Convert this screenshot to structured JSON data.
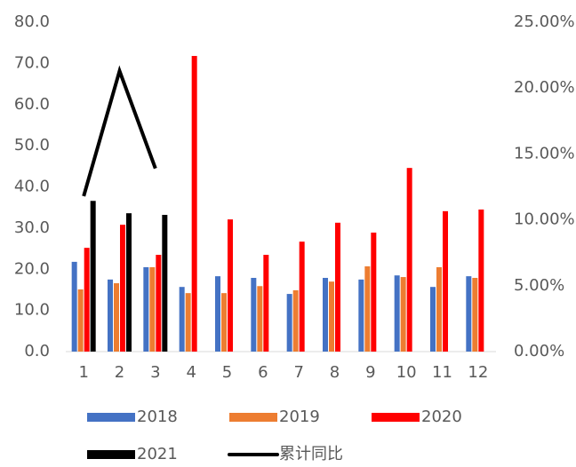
{
  "chart_data": {
    "type": "bar",
    "categories": [
      "1",
      "2",
      "3",
      "4",
      "5",
      "6",
      "7",
      "8",
      "9",
      "10",
      "11",
      "12"
    ],
    "series": [
      {
        "name": "2018",
        "color": "#4472c4",
        "values": [
          21.8,
          17.5,
          20.5,
          15.7,
          18.3,
          17.9,
          14.0,
          17.9,
          17.5,
          18.5,
          15.7,
          18.3
        ]
      },
      {
        "name": "2019",
        "color": "#ed7d31",
        "values": [
          15.1,
          16.6,
          20.5,
          14.2,
          14.2,
          15.9,
          14.9,
          17.0,
          20.7,
          18.1,
          20.5,
          17.9
        ]
      },
      {
        "name": "2020",
        "color": "#ff0000",
        "values": [
          25.2,
          30.8,
          23.5,
          71.8,
          32.1,
          23.5,
          26.7,
          31.3,
          28.9,
          44.6,
          34.1,
          34.5
        ]
      },
      {
        "name": "2021",
        "color": "#000000",
        "values": [
          36.6,
          33.6,
          33.2,
          null,
          null,
          null,
          null,
          null,
          null,
          null,
          null,
          null
        ]
      },
      {
        "name": "累计同比",
        "color": "#000000",
        "type": "line",
        "axis": "y2",
        "values": [
          11.8,
          21.3,
          13.9,
          null,
          null,
          null,
          null,
          null,
          null,
          null,
          null,
          null
        ]
      }
    ],
    "ylim": [
      0,
      80
    ],
    "yticks": [
      {
        "value": 0,
        "label": "0.0"
      },
      {
        "value": 10,
        "label": "10.0"
      },
      {
        "value": 20,
        "label": "20.0"
      },
      {
        "value": 30,
        "label": "30.0"
      },
      {
        "value": 40,
        "label": "40.0"
      },
      {
        "value": 50,
        "label": "50.0"
      },
      {
        "value": 60,
        "label": "60.0"
      },
      {
        "value": 70,
        "label": "70.0"
      },
      {
        "value": 80,
        "label": "80.0"
      }
    ],
    "y2lim": [
      0,
      25
    ],
    "y2ticks": [
      {
        "value": 0,
        "label": "0.00%"
      },
      {
        "value": 5,
        "label": "5.00%"
      },
      {
        "value": 10,
        "label": "10.00%"
      },
      {
        "value": 15,
        "label": "15.00%"
      },
      {
        "value": 20,
        "label": "20.00%"
      },
      {
        "value": 25,
        "label": "25.00%"
      }
    ],
    "legend": "bottom"
  }
}
